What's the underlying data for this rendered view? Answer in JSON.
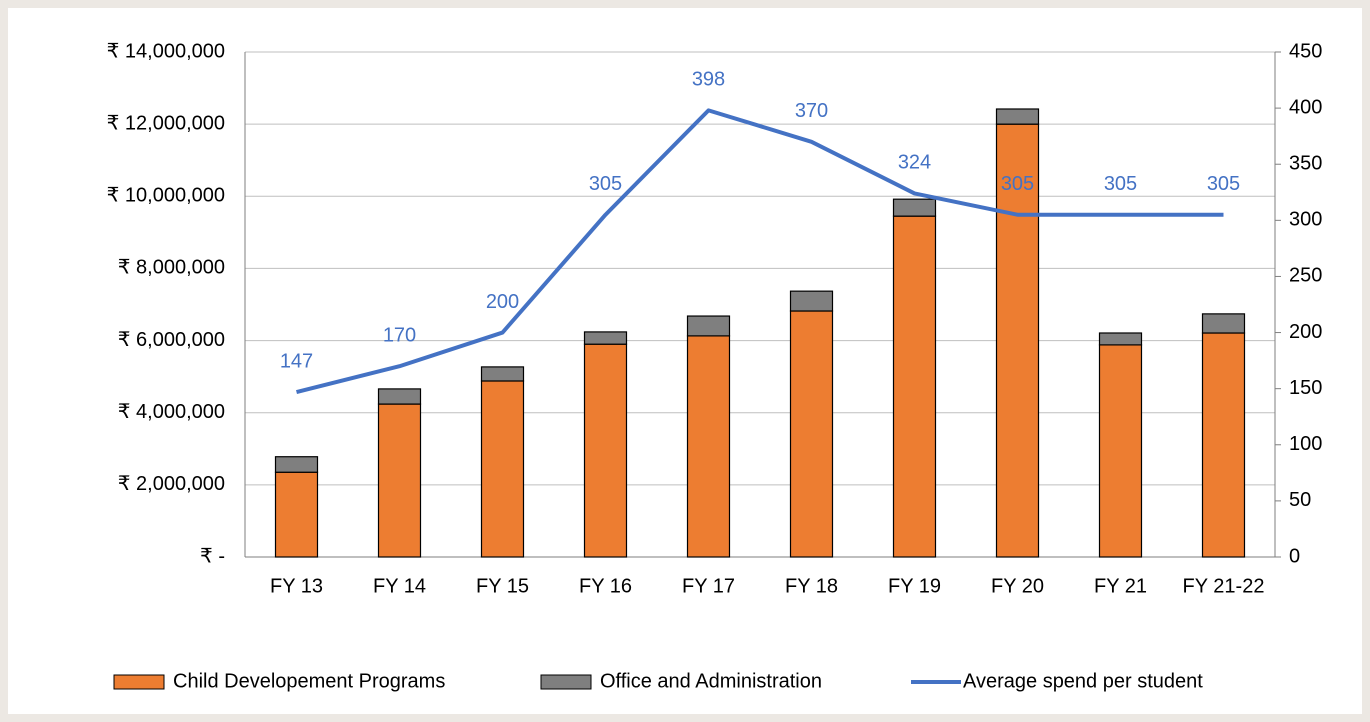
{
  "chart_data": {
    "type": "bar",
    "categories": [
      "FY 13",
      "FY 14",
      "FY 15",
      "FY 16",
      "FY 17",
      "FY 18",
      "FY 19",
      "FY 20",
      "FY 21",
      "FY 21-22"
    ],
    "series": [
      {
        "name": "Child Developement Programs",
        "color": "#ed7d31",
        "values": [
          2350000,
          4240000,
          4880000,
          5900000,
          6130000,
          6820000,
          9450000,
          12000000,
          5880000,
          6210000
        ]
      },
      {
        "name": "Office and Administration",
        "color": "#7f7f7f",
        "values": [
          430000,
          420000,
          390000,
          340000,
          550000,
          550000,
          470000,
          420000,
          330000,
          530000
        ]
      },
      {
        "name": "Average spend per student",
        "type": "line",
        "axis": "y2",
        "color": "#4472c4",
        "values": [
          147,
          170,
          200,
          305,
          398,
          370,
          324,
          305,
          305,
          305
        ]
      }
    ],
    "stacked": true,
    "ylim": [
      0,
      14000000
    ],
    "yticks": [
      {
        "value": 0,
        "label": "₹ -"
      },
      {
        "value": 2000000,
        "label": "₹ 2,000,000"
      },
      {
        "value": 4000000,
        "label": "₹ 4,000,000"
      },
      {
        "value": 6000000,
        "label": "₹ 6,000,000"
      },
      {
        "value": 8000000,
        "label": "₹ 8,000,000"
      },
      {
        "value": 10000000,
        "label": "₹ 10,000,000"
      },
      {
        "value": 12000000,
        "label": "₹ 12,000,000"
      },
      {
        "value": 14000000,
        "label": "₹ 14,000,000"
      }
    ],
    "y2lim": [
      0,
      450
    ],
    "y2ticks": [
      0,
      50,
      100,
      150,
      200,
      250,
      300,
      350,
      400,
      450
    ],
    "grid": true,
    "legend": "bottom"
  }
}
